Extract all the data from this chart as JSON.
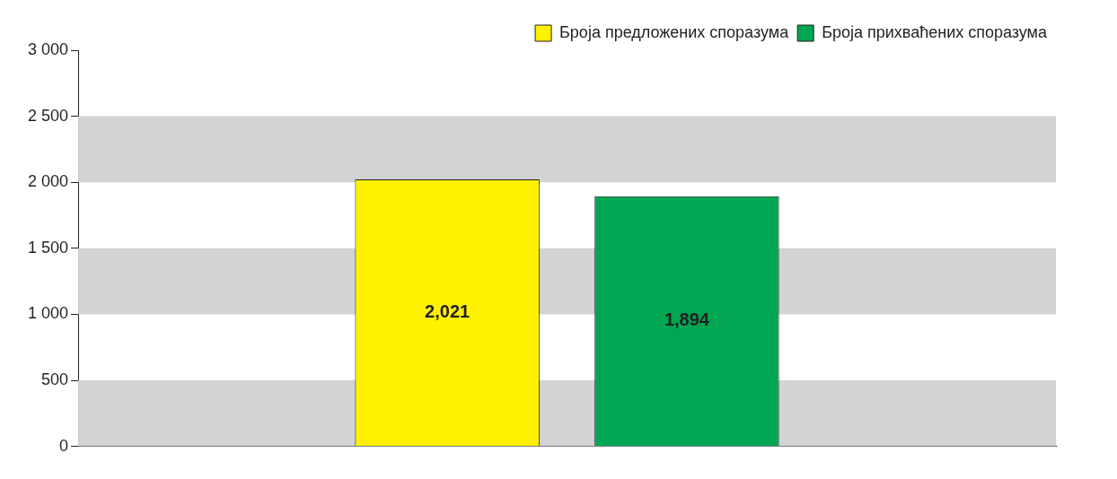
{
  "chart_data": {
    "type": "bar",
    "categories": [
      null
    ],
    "series": [
      {
        "name": "Броја предложених споразума",
        "color": "#fff200",
        "values": [
          2021
        ],
        "value_labels": [
          "2,021"
        ]
      },
      {
        "name": "Броја прихваћених споразума",
        "color": "#00a651",
        "values": [
          1894
        ],
        "value_labels": [
          "1,894"
        ]
      }
    ],
    "ylim": [
      0,
      3000
    ],
    "yticks": [
      0,
      500,
      {
        "value": 1000,
        "label": "1 000"
      },
      {
        "value": 1500,
        "label": "1 500"
      },
      {
        "value": 2000,
        "label": "2 000"
      },
      {
        "value": 2500,
        "label": "2 500"
      },
      {
        "value": 3000,
        "label": "3 000"
      }
    ],
    "bands": [
      {
        "axis": "y",
        "from": 0,
        "to": 500,
        "color": "#d1d3d4"
      },
      {
        "axis": "y",
        "from": 1000,
        "to": 1500,
        "color": "#d1d3d4"
      },
      {
        "axis": "y",
        "from": 2000,
        "to": 2500,
        "color": "#d1d3d4"
      }
    ],
    "grid": false,
    "legend": "top right"
  }
}
